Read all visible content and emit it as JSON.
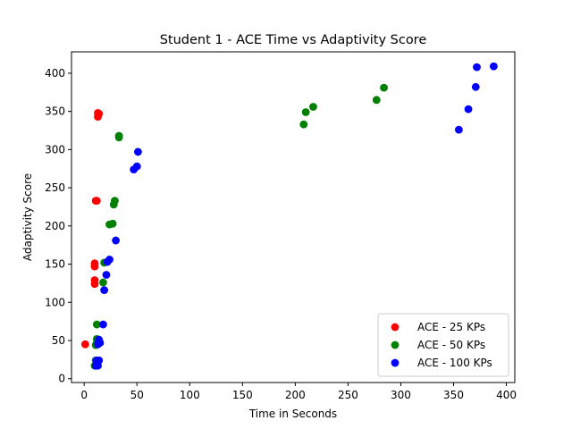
{
  "chart_data": {
    "type": "scatter",
    "title": "Student 1 - ACE Time vs Adaptivity Score",
    "xlabel": "Time in Seconds",
    "ylabel": "Adaptivity Score",
    "xlim": [
      -12,
      408
    ],
    "ylim": [
      -5,
      428
    ],
    "xticks": [
      0,
      50,
      100,
      150,
      200,
      250,
      300,
      350,
      400
    ],
    "yticks": [
      0,
      50,
      100,
      150,
      200,
      250,
      300,
      350,
      400
    ],
    "grid": false,
    "legend_position": "lower-right",
    "series": [
      {
        "name": "ACE - 25 KPs",
        "color": "#ff0000",
        "points": [
          [
            1,
            45
          ],
          [
            10,
            124
          ],
          [
            10,
            129
          ],
          [
            10,
            147
          ],
          [
            10,
            151
          ],
          [
            11,
            233
          ],
          [
            12,
            233
          ],
          [
            13,
            343
          ],
          [
            13,
            348
          ],
          [
            14,
            347
          ]
        ]
      },
      {
        "name": "ACE - 50 KPs",
        "color": "#008000",
        "points": [
          [
            10,
            17
          ],
          [
            11,
            24
          ],
          [
            11,
            44
          ],
          [
            12,
            47
          ],
          [
            12,
            52
          ],
          [
            12,
            71
          ],
          [
            18,
            126
          ],
          [
            19,
            152
          ],
          [
            24,
            202
          ],
          [
            27,
            203
          ],
          [
            28,
            228
          ],
          [
            29,
            233
          ],
          [
            33,
            316
          ],
          [
            33,
            318
          ],
          [
            208,
            333
          ],
          [
            210,
            349
          ],
          [
            217,
            356
          ],
          [
            277,
            365
          ],
          [
            284,
            381
          ]
        ]
      },
      {
        "name": "ACE - 100 KPs",
        "color": "#0000ff",
        "points": [
          [
            11,
            17
          ],
          [
            13,
            17
          ],
          [
            12,
            24
          ],
          [
            14,
            24
          ],
          [
            13,
            45
          ],
          [
            15,
            47
          ],
          [
            14,
            51
          ],
          [
            18,
            71
          ],
          [
            19,
            116
          ],
          [
            21,
            136
          ],
          [
            22,
            153
          ],
          [
            24,
            156
          ],
          [
            30,
            181
          ],
          [
            47,
            274
          ],
          [
            50,
            278
          ],
          [
            51,
            297
          ],
          [
            355,
            326
          ],
          [
            364,
            353
          ],
          [
            371,
            382
          ],
          [
            372,
            408
          ],
          [
            388,
            409
          ]
        ]
      }
    ]
  }
}
